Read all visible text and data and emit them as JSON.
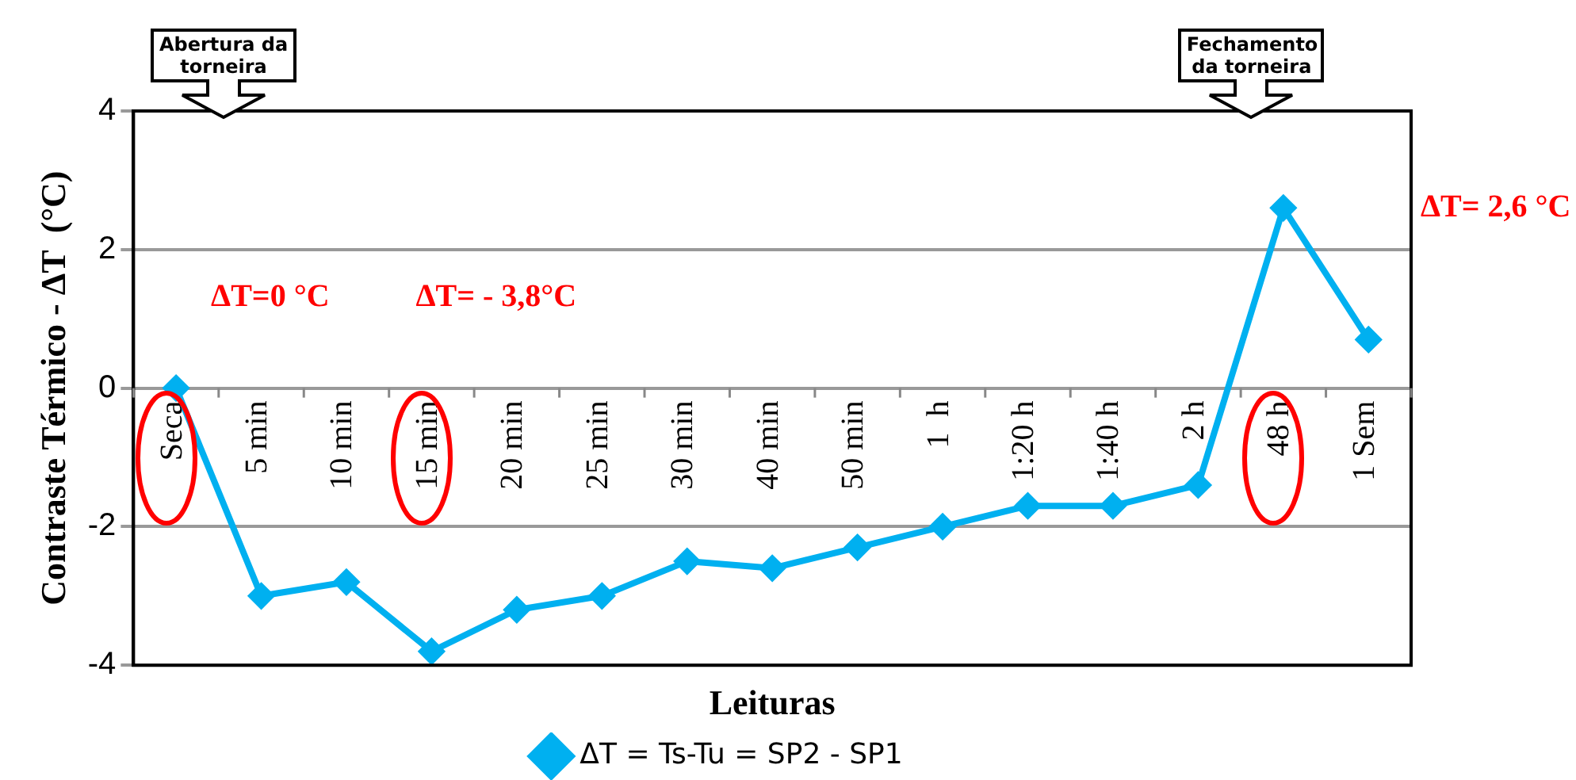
{
  "chart_data": {
    "type": "line",
    "xlabel": "Leituras",
    "ylabel": "Contraste Térmico - ΔT  (°C)",
    "categories": [
      "Seca",
      "5 min",
      "10 min",
      "15 min",
      "20 min",
      "25 min",
      "30 min",
      "40 min",
      "50 min",
      "1  h",
      "1:20 h",
      "1:40 h",
      "2 h",
      "48 h",
      "1 Sem"
    ],
    "series": [
      {
        "name": "ΔT = Ts-Tu = SP2 - SP1",
        "color": "#00b0f0",
        "values": [
          0,
          -3.0,
          -2.8,
          -3.8,
          -3.2,
          -3.0,
          -2.5,
          -2.6,
          -2.3,
          -2.0,
          -1.7,
          -1.7,
          -1.4,
          2.6,
          0.7
        ]
      }
    ],
    "ylim": [
      -4,
      4
    ],
    "yticks": [
      -4,
      -2,
      0,
      2,
      4
    ],
    "grid": "y",
    "legend": "bottom",
    "marker": "diamond",
    "line_style": "solid",
    "annotations": [
      "Abertura da torneira",
      "Fechamento da torneira",
      "ΔT=0 °C",
      "ΔT= - 3,8°C",
      "ΔT= 2,6 °C"
    ]
  }
}
